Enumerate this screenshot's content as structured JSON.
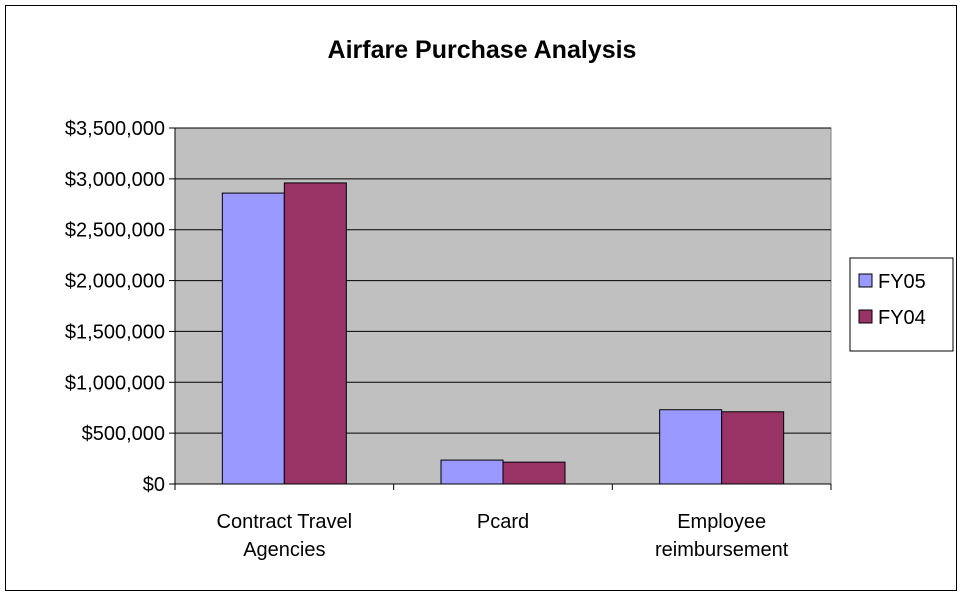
{
  "chart_data": {
    "type": "bar",
    "title": "Airfare Purchase Analysis",
    "categories": [
      [
        "Contract Travel",
        "Agencies"
      ],
      [
        "Pcard"
      ],
      [
        "Employee",
        "reimbursement"
      ]
    ],
    "series": [
      {
        "name": "FY05",
        "color": "#9999ff",
        "values": [
          2860000,
          235000,
          730000
        ]
      },
      {
        "name": "FY04",
        "color": "#993366",
        "values": [
          2960000,
          215000,
          710000
        ]
      }
    ],
    "ylim": [
      0,
      3500000
    ],
    "yticks": [
      0,
      500000,
      1000000,
      1500000,
      2000000,
      2500000,
      3000000,
      3500000
    ],
    "ytick_labels": [
      "$0",
      "$500,000",
      "$1,000,000",
      "$1,500,000",
      "$2,000,000",
      "$2,500,000",
      "$3,000,000",
      "$3,500,000"
    ],
    "plot_background": "#c0c0c0",
    "grid": true,
    "legend_position": "right"
  }
}
